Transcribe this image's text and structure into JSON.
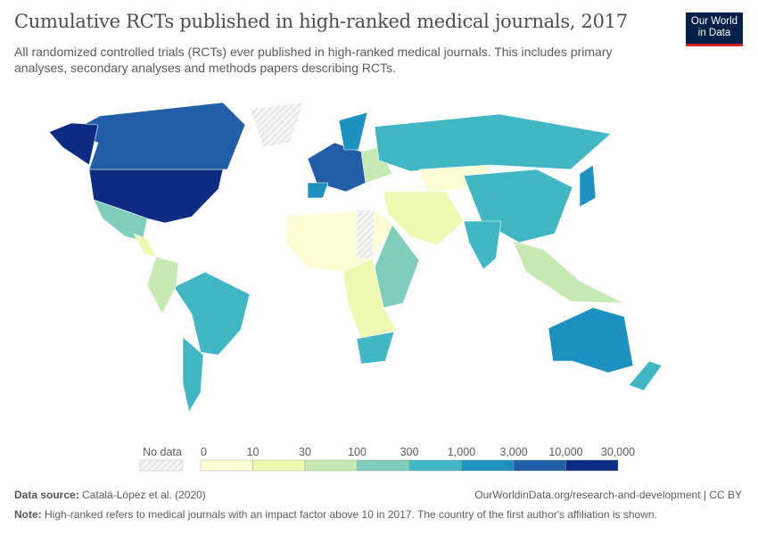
{
  "header": {
    "title": "Cumulative RCTs published in high-ranked medical journals, 2017",
    "subtitle": "All randomized controlled trials (RCTs) ever published in high-ranked medical journals. This includes primary analyses, secondary analyses and methods papers describing RCTs.",
    "logo_text": "Our World in Data"
  },
  "legend": {
    "no_data_label": "No data",
    "ticks": [
      "0",
      "10",
      "30",
      "100",
      "300",
      "1,000",
      "3,000",
      "10,000",
      "30,000"
    ],
    "colors": [
      "#fffdd6",
      "#edf8b1",
      "#c7e9b4",
      "#7fcdbb",
      "#41b6c4",
      "#1d91c0",
      "#225ea8",
      "#0c2c84"
    ],
    "no_data_color": "#e8e8e8"
  },
  "footer": {
    "source_label": "Data source:",
    "source": "Catalá-López et al. (2020)",
    "url": "OurWorldinData.org/research-and-development | CC BY",
    "note_label": "Note:",
    "note": "High-ranked refers to medical journals with an impact factor above 10 in 2017. The country of the first author's affiliation is shown."
  },
  "regions": [
    {
      "name": "United States",
      "bin": 7
    },
    {
      "name": "Canada",
      "bin": 6
    },
    {
      "name": "Alaska",
      "bin": 7
    },
    {
      "name": "Greenland",
      "bin": -1
    },
    {
      "name": "Mexico",
      "bin": 3
    },
    {
      "name": "Central America",
      "bin": 1
    },
    {
      "name": "Brazil",
      "bin": 4
    },
    {
      "name": "Argentina",
      "bin": 4
    },
    {
      "name": "Andean countries",
      "bin": 2
    },
    {
      "name": "North Africa & Sahel",
      "bin": 0
    },
    {
      "name": "Western Sahara & Sudan",
      "bin": -1
    },
    {
      "name": "East Africa",
      "bin": 3
    },
    {
      "name": "Southern-central Africa",
      "bin": 1
    },
    {
      "name": "South Africa",
      "bin": 4
    },
    {
      "name": "Western Europe",
      "bin": 6
    },
    {
      "name": "Spain",
      "bin": 5
    },
    {
      "name": "Scandinavia",
      "bin": 5
    },
    {
      "name": "Eastern Europe",
      "bin": 2
    },
    {
      "name": "Russia",
      "bin": 4
    },
    {
      "name": "Central Asia",
      "bin": 0
    },
    {
      "name": "China",
      "bin": 4
    },
    {
      "name": "Japan",
      "bin": 5
    },
    {
      "name": "India",
      "bin": 4
    },
    {
      "name": "Middle East",
      "bin": 1
    },
    {
      "name": "Southeast Asia",
      "bin": 2
    },
    {
      "name": "Australia",
      "bin": 5
    },
    {
      "name": "New Zealand",
      "bin": 4
    }
  ]
}
